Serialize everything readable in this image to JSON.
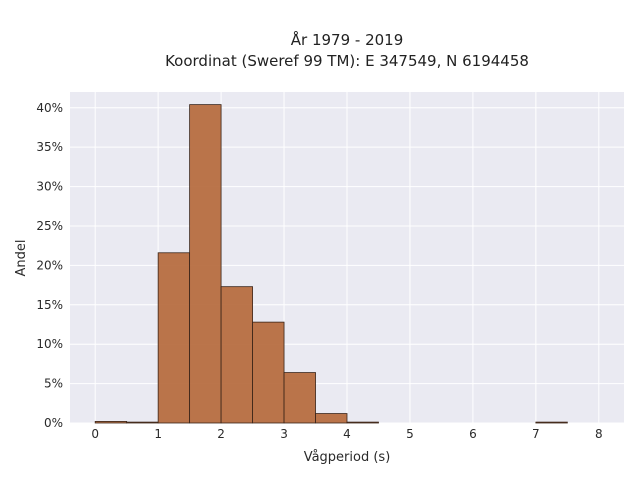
{
  "chart_data": {
    "type": "bar",
    "title_lines": [
      "År 1979 - 2019",
      "Koordinat (Sweref 99 TM): E 347549, N 6194458"
    ],
    "xlabel": "Vågperiod (s)",
    "ylabel": "Andel",
    "xlim": [
      -0.4,
      8.4
    ],
    "ylim": [
      0,
      0.42
    ],
    "x_ticks": [
      0,
      1,
      2,
      3,
      4,
      5,
      6,
      7,
      8
    ],
    "y_ticks": [
      0,
      0.05,
      0.1,
      0.15,
      0.2,
      0.25,
      0.3,
      0.35,
      0.4
    ],
    "y_tick_labels": [
      "0%",
      "5%",
      "10%",
      "15%",
      "20%",
      "25%",
      "30%",
      "35%",
      "40%"
    ],
    "bin_width": 0.5,
    "bins": [
      {
        "start": 0.0,
        "value": 0.002
      },
      {
        "start": 0.5,
        "value": 0.0
      },
      {
        "start": 1.0,
        "value": 0.216
      },
      {
        "start": 1.5,
        "value": 0.404
      },
      {
        "start": 2.0,
        "value": 0.173
      },
      {
        "start": 2.5,
        "value": 0.128
      },
      {
        "start": 3.0,
        "value": 0.064
      },
      {
        "start": 3.5,
        "value": 0.012
      },
      {
        "start": 4.0,
        "value": 0.0005
      },
      {
        "start": 7.0,
        "value": 0.0005
      }
    ],
    "grid": true,
    "colors": {
      "bar_fill": "#b5693c",
      "bar_stroke": "#3a2418",
      "plot_bg": "#eaeaf2",
      "grid": "#ffffff"
    }
  }
}
